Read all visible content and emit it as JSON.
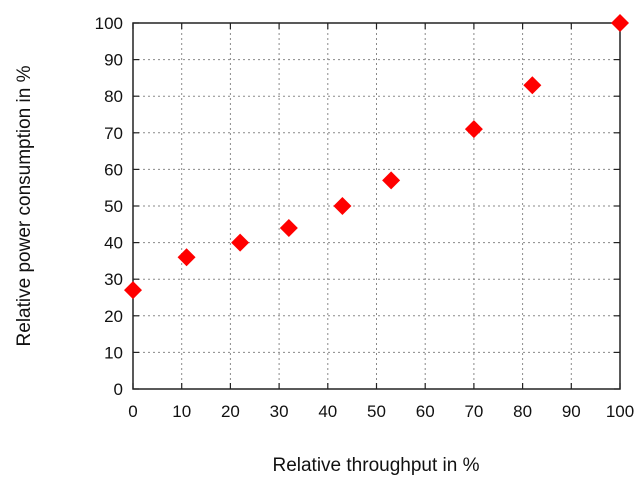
{
  "chart_data": {
    "type": "scatter",
    "xlabel": "Relative throughput in %",
    "ylabel": "Relative power consumption in %",
    "xlim": [
      0,
      100
    ],
    "ylim": [
      0,
      100
    ],
    "xticks": [
      0,
      10,
      20,
      30,
      40,
      50,
      60,
      70,
      80,
      90,
      100
    ],
    "yticks": [
      0,
      10,
      20,
      30,
      40,
      50,
      60,
      70,
      80,
      90,
      100
    ],
    "grid": true,
    "marker": "diamond",
    "series": [
      {
        "color": "#ff0000",
        "x": [
          0,
          11,
          22,
          32,
          43,
          53,
          70,
          82,
          100
        ],
        "y": [
          27,
          36,
          40,
          44,
          50,
          57,
          71,
          83,
          100
        ]
      }
    ]
  }
}
